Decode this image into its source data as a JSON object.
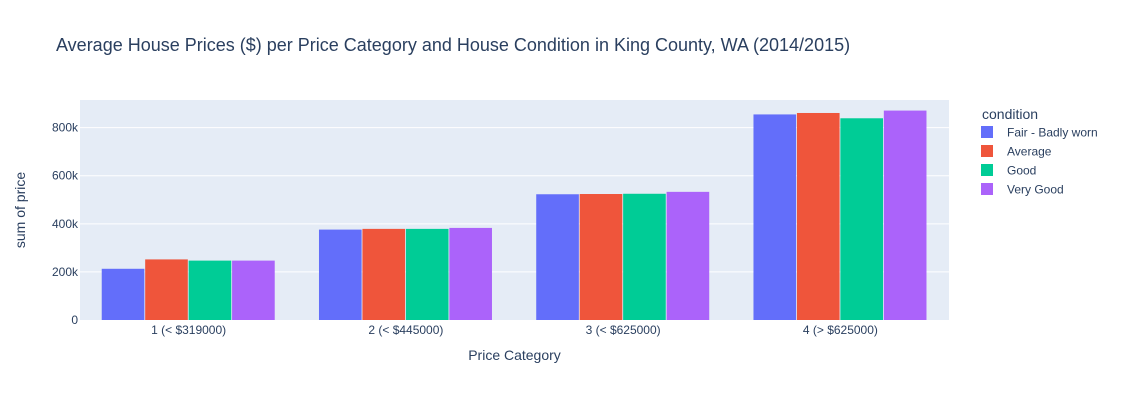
{
  "chart_data": {
    "type": "bar",
    "title": "Average House Prices ($) per Price Category and House Condition in King County, WA (2014/2015)",
    "xlabel": "Price Category",
    "ylabel": "sum of price",
    "categories": [
      "1 (< $319000)",
      "2 (< $445000)",
      "3 (< $625000)",
      "4 (> $625000)"
    ],
    "ylim": [
      0,
      915000
    ],
    "yticks": [
      0,
      200000,
      400000,
      600000,
      800000
    ],
    "ytick_labels": [
      "0",
      "200k",
      "400k",
      "600k",
      "800k"
    ],
    "grid": true,
    "legend": {
      "title": "condition",
      "placement": "right"
    },
    "series": [
      {
        "name": "Fair - Badly worn",
        "color": "#636efa",
        "values": [
          213000,
          376000,
          523000,
          855000
        ]
      },
      {
        "name": "Average",
        "color": "#ef553b",
        "values": [
          252000,
          379000,
          524000,
          861000
        ]
      },
      {
        "name": "Good",
        "color": "#00cc96",
        "values": [
          247000,
          379000,
          525000,
          839000
        ]
      },
      {
        "name": "Very Good",
        "color": "#ab63fa",
        "values": [
          247000,
          383000,
          533000,
          871000
        ]
      }
    ],
    "colors": {
      "plot_background": "#e5ecf6",
      "gridline": "#ffffff",
      "text": "#2a3f5f",
      "tick_text": "#2a3f5f"
    }
  }
}
